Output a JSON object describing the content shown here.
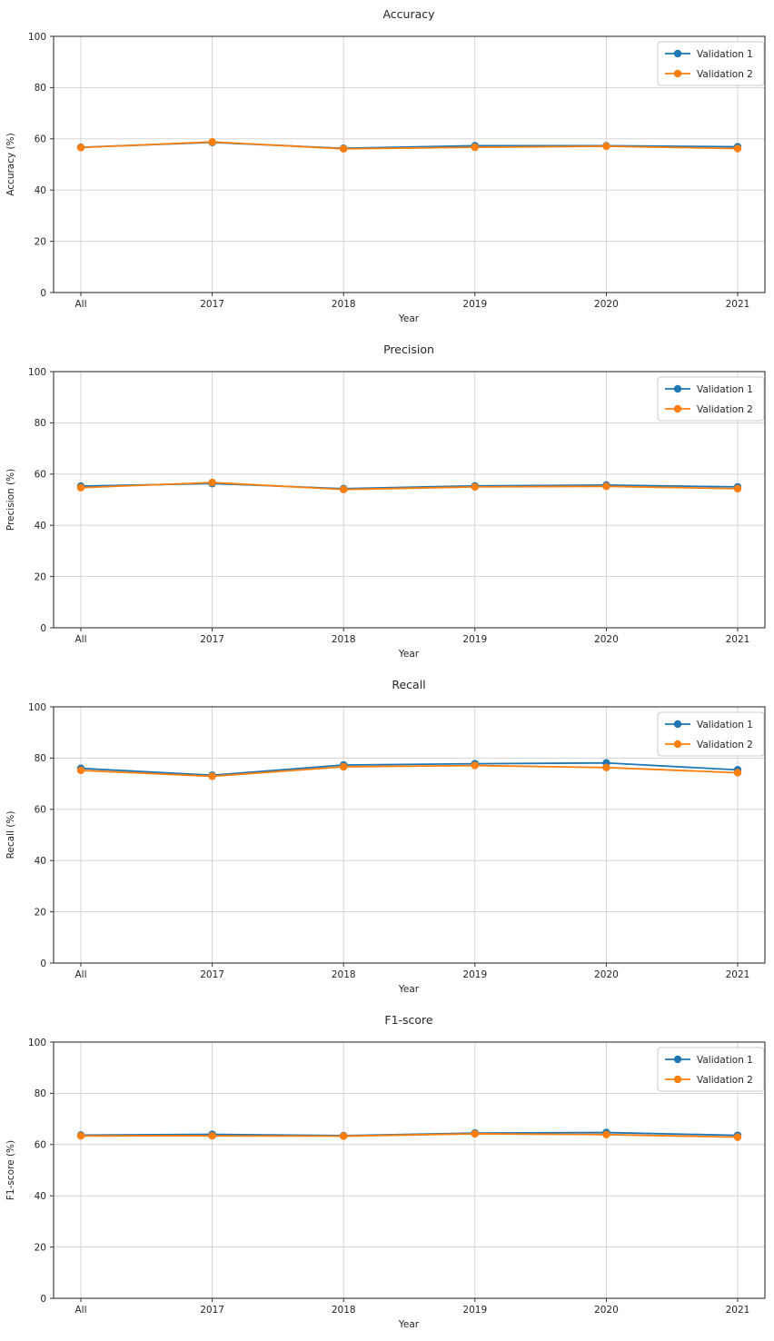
{
  "figure": {
    "background_color": "#ffffff",
    "text_color": "#262626",
    "grid_color": "#d0d0d0",
    "spine_color": "#333333",
    "legend_border_color": "#cccccc",
    "legend_background": "#ffffff"
  },
  "chart_data": [
    {
      "type": "line",
      "title": "Accuracy",
      "xlabel": "Year",
      "ylabel": "Accuracy (%)",
      "categories": [
        "All",
        "2017",
        "2018",
        "2019",
        "2020",
        "2021"
      ],
      "ylim": [
        0,
        100
      ],
      "yticks": [
        0,
        20,
        40,
        60,
        80,
        100
      ],
      "grid": true,
      "legend": {
        "position": "upper right",
        "entries": [
          "Validation 1",
          "Validation 2"
        ]
      },
      "series": [
        {
          "name": "Validation 1",
          "color": "#1f77b4",
          "marker": "circle",
          "values": [
            56.7,
            58.6,
            56.3,
            57.3,
            57.3,
            56.9
          ]
        },
        {
          "name": "Validation 2",
          "color": "#ff7f0e",
          "marker": "circle",
          "values": [
            56.6,
            58.8,
            56.1,
            56.7,
            57.1,
            56.2
          ]
        }
      ]
    },
    {
      "type": "line",
      "title": "Precision",
      "xlabel": "Year",
      "ylabel": "Precision (%)",
      "categories": [
        "All",
        "2017",
        "2018",
        "2019",
        "2020",
        "2021"
      ],
      "ylim": [
        0,
        100
      ],
      "yticks": [
        0,
        20,
        40,
        60,
        80,
        100
      ],
      "grid": true,
      "legend": {
        "position": "upper right",
        "entries": [
          "Validation 1",
          "Validation 2"
        ]
      },
      "series": [
        {
          "name": "Validation 1",
          "color": "#1f77b4",
          "marker": "circle",
          "values": [
            55.3,
            56.3,
            54.3,
            55.4,
            55.7,
            55.0
          ]
        },
        {
          "name": "Validation 2",
          "color": "#ff7f0e",
          "marker": "circle",
          "values": [
            54.7,
            56.7,
            54.0,
            55.0,
            55.2,
            54.3
          ]
        }
      ]
    },
    {
      "type": "line",
      "title": "Recall",
      "xlabel": "Year",
      "ylabel": "Recall (%)",
      "categories": [
        "All",
        "2017",
        "2018",
        "2019",
        "2020",
        "2021"
      ],
      "ylim": [
        0,
        100
      ],
      "yticks": [
        0,
        20,
        40,
        60,
        80,
        100
      ],
      "grid": true,
      "legend": {
        "position": "upper right",
        "entries": [
          "Validation 1",
          "Validation 2"
        ]
      },
      "series": [
        {
          "name": "Validation 1",
          "color": "#1f77b4",
          "marker": "circle",
          "values": [
            76.0,
            73.3,
            77.3,
            77.8,
            78.1,
            75.4
          ]
        },
        {
          "name": "Validation 2",
          "color": "#ff7f0e",
          "marker": "circle",
          "values": [
            75.2,
            72.9,
            76.6,
            77.1,
            76.3,
            74.3
          ]
        }
      ]
    },
    {
      "type": "line",
      "title": "F1-score",
      "xlabel": "Year",
      "ylabel": "F1-score (%)",
      "categories": [
        "All",
        "2017",
        "2018",
        "2019",
        "2020",
        "2021"
      ],
      "ylim": [
        0,
        100
      ],
      "yticks": [
        0,
        20,
        40,
        60,
        80,
        100
      ],
      "grid": true,
      "legend": {
        "position": "upper right",
        "entries": [
          "Validation 1",
          "Validation 2"
        ]
      },
      "series": [
        {
          "name": "Validation 1",
          "color": "#1f77b4",
          "marker": "circle",
          "values": [
            63.7,
            64.0,
            63.5,
            64.5,
            64.7,
            63.6
          ]
        },
        {
          "name": "Validation 2",
          "color": "#ff7f0e",
          "marker": "circle",
          "values": [
            63.4,
            63.4,
            63.3,
            64.2,
            63.9,
            62.9
          ]
        }
      ]
    }
  ]
}
